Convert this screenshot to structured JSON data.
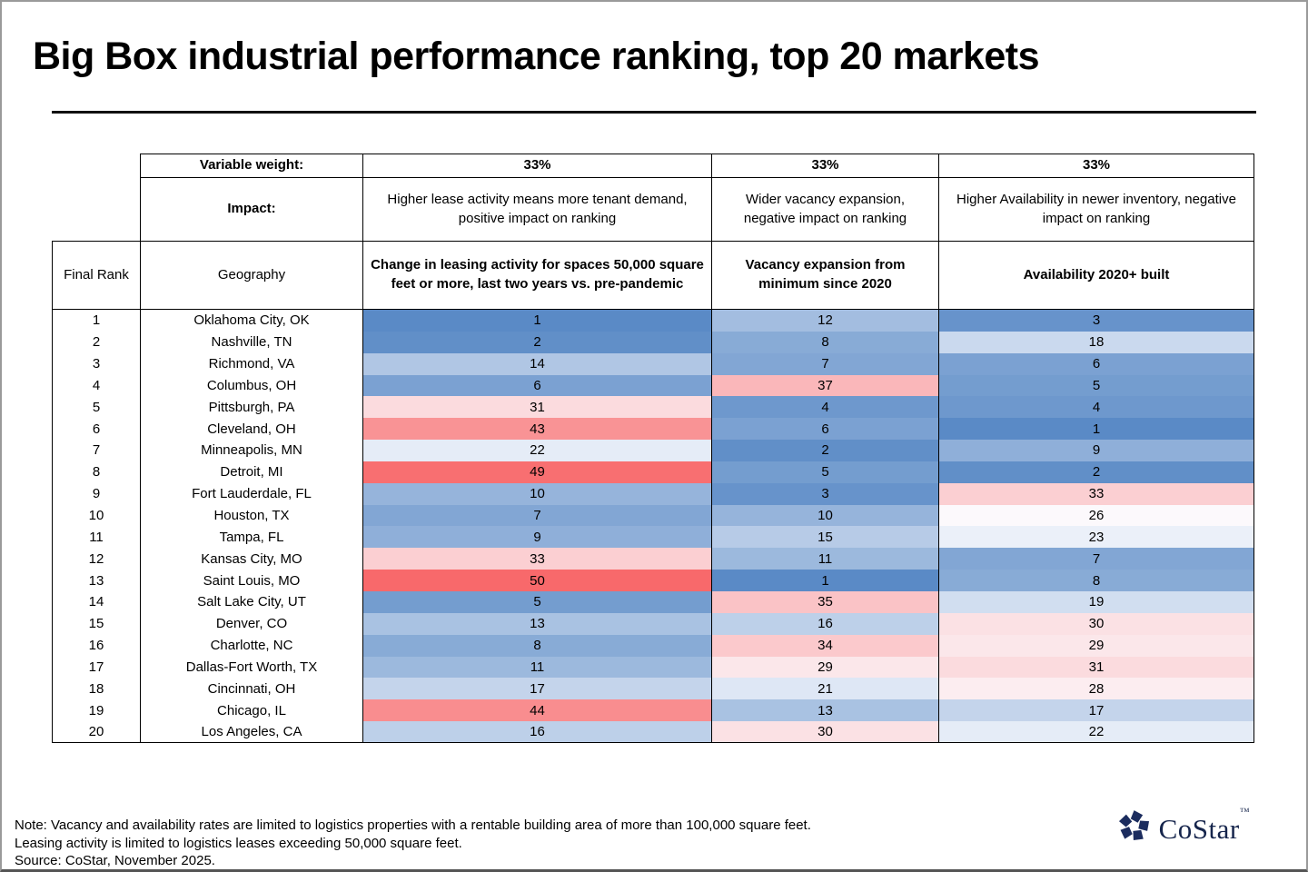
{
  "title": "Big Box industrial performance ranking, top 20 markets",
  "chart_data": {
    "type": "heatmap",
    "title": "Big Box industrial performance ranking, top 20 markets",
    "table_headers": {
      "variable_weight_label": "Variable weight:",
      "impact_label": "Impact:",
      "weights": [
        "33%",
        "33%",
        "33%"
      ],
      "impacts": [
        "Higher lease activity means more tenant demand, positive impact on ranking",
        "Wider vacancy expansion, negative impact on ranking",
        "Higher Availability in newer inventory, negative impact on ranking"
      ],
      "rank_col": "Final Rank",
      "geo_col": "Geography",
      "metric_cols": [
        "Change in leasing activity for spaces 50,000 square feet or more, last two years vs. pre-pandemic",
        "Vacancy expansion from minimum since 2020",
        "Availability 2020+ built"
      ]
    },
    "rows": [
      {
        "rank": 1,
        "geography": "Oklahoma City, OK",
        "leasing": 1,
        "vacancy": 12,
        "availability": 3
      },
      {
        "rank": 2,
        "geography": "Nashville, TN",
        "leasing": 2,
        "vacancy": 8,
        "availability": 18
      },
      {
        "rank": 3,
        "geography": "Richmond, VA",
        "leasing": 14,
        "vacancy": 7,
        "availability": 6
      },
      {
        "rank": 4,
        "geography": "Columbus, OH",
        "leasing": 6,
        "vacancy": 37,
        "availability": 5
      },
      {
        "rank": 5,
        "geography": "Pittsburgh, PA",
        "leasing": 31,
        "vacancy": 4,
        "availability": 4
      },
      {
        "rank": 6,
        "geography": "Cleveland, OH",
        "leasing": 43,
        "vacancy": 6,
        "availability": 1
      },
      {
        "rank": 7,
        "geography": "Minneapolis, MN",
        "leasing": 22,
        "vacancy": 2,
        "availability": 9
      },
      {
        "rank": 8,
        "geography": "Detroit, MI",
        "leasing": 49,
        "vacancy": 5,
        "availability": 2
      },
      {
        "rank": 9,
        "geography": "Fort Lauderdale, FL",
        "leasing": 10,
        "vacancy": 3,
        "availability": 33
      },
      {
        "rank": 10,
        "geography": "Houston, TX",
        "leasing": 7,
        "vacancy": 10,
        "availability": 26
      },
      {
        "rank": 11,
        "geography": "Tampa, FL",
        "leasing": 9,
        "vacancy": 15,
        "availability": 23
      },
      {
        "rank": 12,
        "geography": "Kansas City, MO",
        "leasing": 33,
        "vacancy": 11,
        "availability": 7
      },
      {
        "rank": 13,
        "geography": "Saint Louis, MO",
        "leasing": 50,
        "vacancy": 1,
        "availability": 8
      },
      {
        "rank": 14,
        "geography": "Salt Lake City, UT",
        "leasing": 5,
        "vacancy": 35,
        "availability": 19
      },
      {
        "rank": 15,
        "geography": "Denver, CO",
        "leasing": 13,
        "vacancy": 16,
        "availability": 30
      },
      {
        "rank": 16,
        "geography": "Charlotte, NC",
        "leasing": 8,
        "vacancy": 34,
        "availability": 29
      },
      {
        "rank": 17,
        "geography": "Dallas-Fort Worth, TX",
        "leasing": 11,
        "vacancy": 29,
        "availability": 31
      },
      {
        "rank": 18,
        "geography": "Cincinnati, OH",
        "leasing": 17,
        "vacancy": 21,
        "availability": 28
      },
      {
        "rank": 19,
        "geography": "Chicago, IL",
        "leasing": 44,
        "vacancy": 13,
        "availability": 17
      },
      {
        "rank": 20,
        "geography": "Los Angeles, CA",
        "leasing": 16,
        "vacancy": 30,
        "availability": 22
      }
    ],
    "color_scale": {
      "min_color": "#5A8AC6",
      "mid_color": "#FCFCFF",
      "max_color": "#F8696B",
      "domain": [
        1,
        25.5,
        50
      ]
    },
    "layout": "columns: Final Rank, Geography, 3 rank metrics; heat colors blue=low rank value, red=high"
  },
  "footer": {
    "notes": [
      "Note: Vacancy and availability rates are limited to logistics properties with a rentable building area of more than 100,000 square feet.",
      "Leasing activity is limited to logistics leases exceeding 50,000 square feet.",
      "Source: CoStar, November 2025."
    ],
    "logo_text": "CoStar",
    "logo_tm": "™",
    "logo_color": "#16254c"
  }
}
